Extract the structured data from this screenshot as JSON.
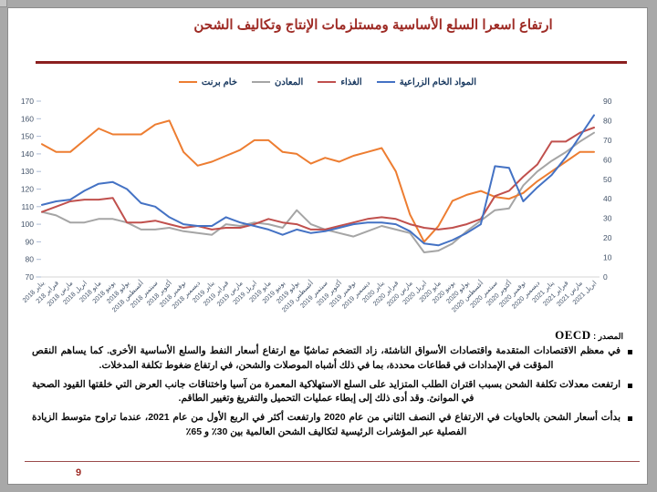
{
  "slide": {
    "title": "ارتفاع اسعرا السلع الأساسية ومستلزمات الإنتاج وتكاليف الشحن",
    "source_label": "المصدر :",
    "source_value": "OECD",
    "bullets": [
      "في معظم الاقتصادات المتقدمة واقتصادات الأسواق الناشئة، زاد التضخم تماشيًا مع ارتفاع أسعار النفط والسلع الأساسية الأخرى. كما يساهم النقص المؤقت في الإمدادات في قطاعات محددة، بما في ذلك أشباه الموصلات والشحن، في ارتفاع ضغوط تكلفة المدخلات.",
      "ارتفعت معدلات تكلفة الشحن بسبب اقتران الطلب المتزايد على السلع الاستهلاكية المعمرة من آسيا واختناقات جانب العرض التي خلقتها القيود الصحية في الموانئ. وقد أدى ذلك إلى إبطاء عمليات التحميل والتفريغ وتغيير الطاقم.",
      "بدأت أسعار الشحن بالحاويات في الارتفاع في النصف الثاني من عام 2020 وارتفعت أكثر في الربع الأول من عام 2021، عندما تراوح متوسط الزيادة الفصلية عبر المؤشرات الرئيسية لتكاليف الشحن العالمية بين 30٪ و 65٪"
    ],
    "page_number": "9",
    "colors": {
      "title_red": "#9e2b25",
      "divider_red": "#8b1f1f",
      "legend_text": "#17375e",
      "axis_label": "#44546a"
    }
  },
  "chart_data": {
    "type": "line",
    "grid": false,
    "legend_position": "top",
    "x": [
      "يناير 2018",
      "فبراير 218",
      "مارس 2018",
      "ابريل 2018",
      "مايو 2018",
      "يونيو 2018",
      "يوليو 2018",
      "أغسطس 2018",
      "سبتمبر 2018",
      "أكتوبر 2018",
      "نوفمبر 2018",
      "ديسمبر 2018",
      "يناير 2019",
      "فبراير 2019",
      "مارس 2019",
      "ابريل 2019",
      "مايو 2019",
      "يونيو 2019",
      "يوليو 2019",
      "أغسطس 2019",
      "سبتمبر 2019",
      "أكتوبر 2019",
      "نوفمبر 2019",
      "ديسمبر 2019",
      "يناير 2020",
      "فبراير 2020",
      "مارس 2020",
      "ابريل 2020",
      "مايو 2020",
      "يونيو 2020",
      "يوليو 2020",
      "أغسطس 2020",
      "سبتمبر 2020",
      "أكتوبر 2020",
      "نوفمبر 2020",
      "ديسمبر 2020",
      "يناير 2021",
      "فبراير 2021",
      "مارس 2021",
      "ابريل 2021"
    ],
    "left_axis": {
      "min": 70,
      "max": 170,
      "step": 10
    },
    "right_axis": {
      "min": 0,
      "max": 90,
      "step": 10
    },
    "series": [
      {
        "name": "المواد الخام الزراعية",
        "color": "#4472c4",
        "axis": "left",
        "values": [
          111,
          113,
          114,
          119,
          123,
          124,
          120,
          112,
          110,
          104,
          100,
          99,
          99,
          104,
          101,
          99,
          97,
          94,
          97,
          95,
          96,
          98,
          100,
          101,
          101,
          100,
          96,
          89,
          88,
          91,
          95,
          100,
          133,
          132,
          113,
          121,
          128,
          138,
          150,
          162
        ]
      },
      {
        "name": "الغذاء",
        "color": "#c0504d",
        "axis": "left",
        "values": [
          107,
          110,
          113,
          114,
          114,
          115,
          101,
          101,
          102,
          100,
          98,
          99,
          97,
          98,
          98,
          100,
          103,
          101,
          100,
          97,
          97,
          99,
          101,
          103,
          104,
          103,
          100,
          98,
          97,
          98,
          100,
          103,
          116,
          119,
          127,
          134,
          147,
          147,
          152,
          155
        ]
      },
      {
        "name": "المعادن",
        "color": "#a5a5a5",
        "axis": "left",
        "values": [
          107,
          105,
          101,
          101,
          103,
          103,
          101,
          97,
          97,
          98,
          96,
          95,
          94,
          100,
          99,
          101,
          100,
          98,
          108,
          100,
          97,
          95,
          93,
          96,
          99,
          97,
          95,
          84,
          85,
          89,
          96,
          102,
          108,
          109,
          122,
          130,
          136,
          141,
          147,
          152
        ]
      },
      {
        "name": "خام برنت",
        "color": "#ed7d31",
        "axis": "right",
        "values": [
          68,
          64,
          64,
          70,
          76,
          73,
          73,
          73,
          78,
          80,
          64,
          57,
          59,
          62,
          65,
          70,
          70,
          64,
          63,
          58,
          61,
          59,
          62,
          64,
          66,
          54,
          32,
          18,
          26,
          39,
          42,
          44,
          41,
          40,
          43,
          49,
          54,
          59,
          64,
          64
        ]
      }
    ]
  }
}
